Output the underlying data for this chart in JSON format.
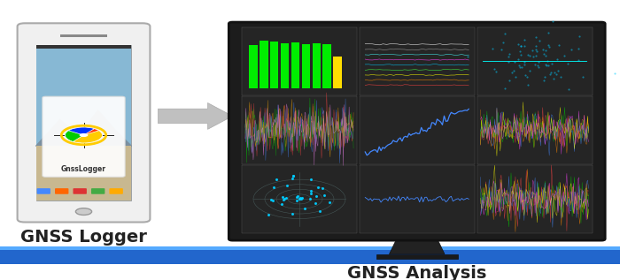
{
  "bg_color": "#ffffff",
  "title_gnss_logger": "GNSS Logger",
  "title_gnss_analysis": "GNSS Analysis",
  "title_font_size": 14,
  "phone_body_color": "#f0f0f0",
  "phone_border_color": "#aaaaaa",
  "monitor_body_color": "#1c1c1c",
  "monitor_screen_color": "#1e1e1e",
  "blue_bar_color_dark": "#2266cc",
  "blue_bar_color_light": "#55aaff"
}
